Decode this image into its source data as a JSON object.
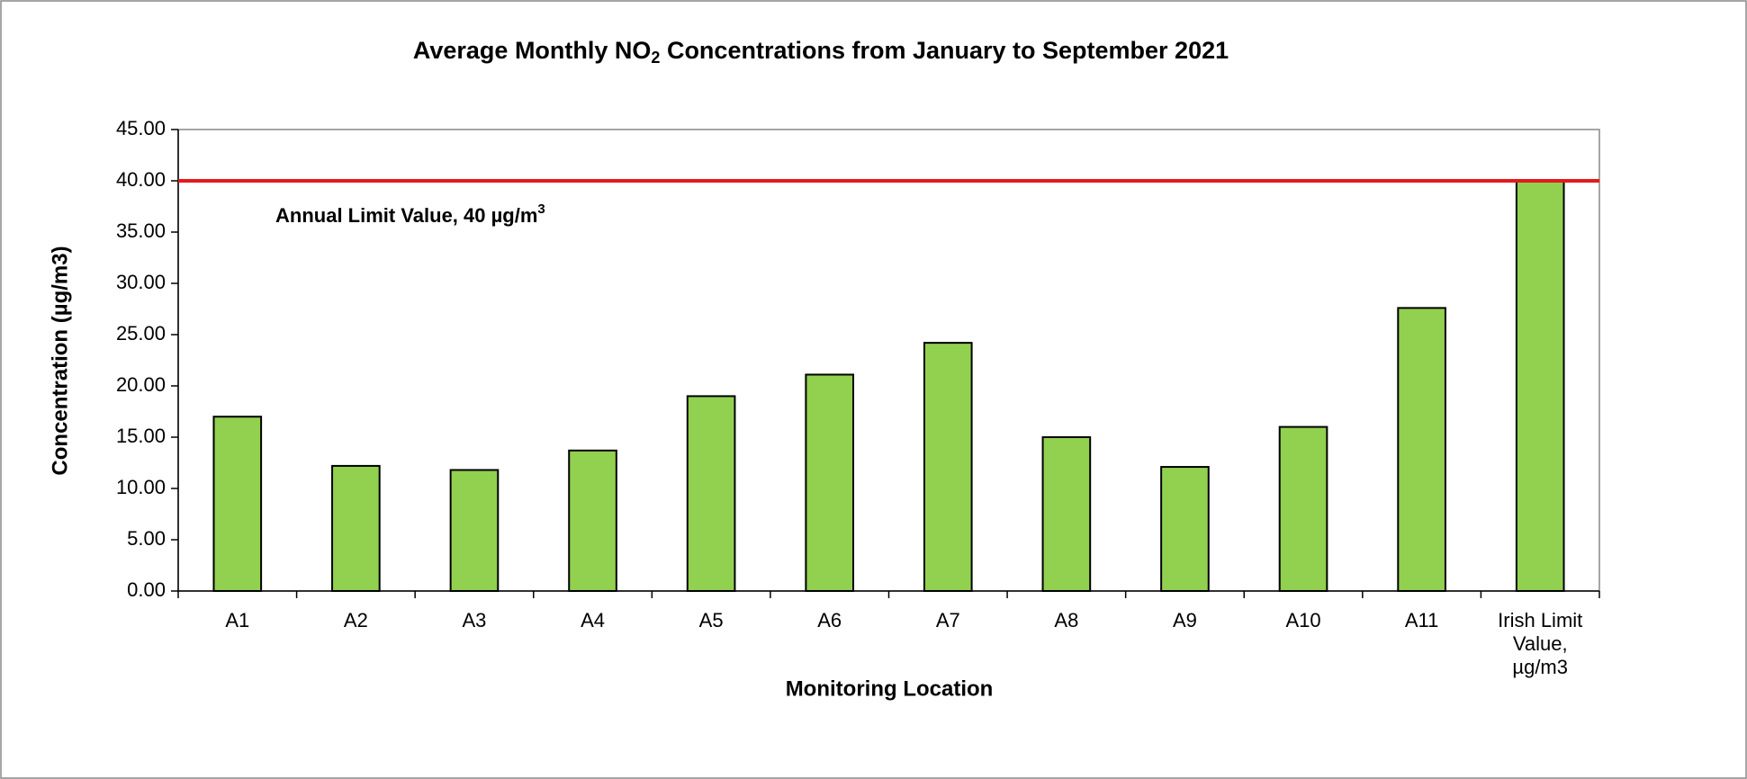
{
  "chart_data": {
    "type": "bar",
    "title": [
      "Average Monthly NO",
      "2",
      " Concentrations from January to September 2021"
    ],
    "x_label": "Monitoring Location",
    "y_label": "Concentration (µg/m3)",
    "categories": [
      "A1",
      "A2",
      "A3",
      "A4",
      "A5",
      "A6",
      "A7",
      "A8",
      "A9",
      "A10",
      "A11",
      "Irish Limit Value, µg/m3"
    ],
    "values": [
      17.0,
      12.2,
      11.8,
      13.7,
      19.0,
      21.1,
      24.2,
      15.0,
      12.1,
      16.0,
      27.6,
      40
    ],
    "color": "#92d050",
    "ylim": [
      0,
      45
    ],
    "yticks": [
      {
        "value": 0,
        "label": "0.00"
      },
      {
        "value": 5,
        "label": "5.00"
      },
      {
        "value": 10,
        "label": "10.00"
      },
      {
        "value": 15,
        "label": "15.00"
      },
      {
        "value": 20,
        "label": "20.00"
      },
      {
        "value": 25,
        "label": "25.00"
      },
      {
        "value": 30,
        "label": "30.00"
      },
      {
        "value": 35,
        "label": "35.00"
      },
      {
        "value": 40,
        "label": "40.00"
      },
      {
        "value": 45,
        "label": "45.00"
      }
    ],
    "grid": false,
    "limit_line": {
      "value": 40,
      "color": "#e31a1c",
      "label": [
        "Annual Limit Value, 40 µg/m",
        "3"
      ]
    }
  }
}
